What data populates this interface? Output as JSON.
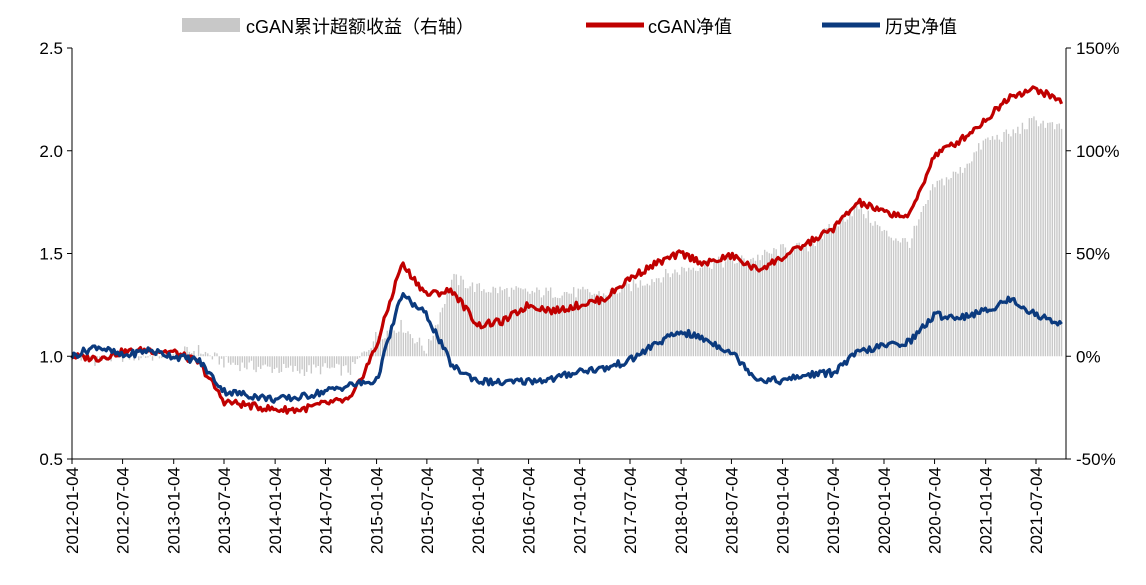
{
  "chart_data": {
    "type": "line",
    "title": "",
    "xlabel": "",
    "ylabel": "",
    "ylim": [
      0.5,
      2.5
    ],
    "y2lim": [
      -0.5,
      1.5
    ],
    "x_ticks": [
      "2012-01-04",
      "2012-07-04",
      "2013-01-04",
      "2013-07-04",
      "2014-01-04",
      "2014-07-04",
      "2015-01-04",
      "2015-07-04",
      "2016-01-04",
      "2016-07-04",
      "2017-01-04",
      "2017-07-04",
      "2018-01-04",
      "2018-07-04",
      "2019-01-04",
      "2019-07-04",
      "2020-01-04",
      "2020-07-04",
      "2021-01-04",
      "2021-07-04"
    ],
    "y_ticks": [
      "0.5",
      "1.0",
      "1.5",
      "2.0",
      "2.5"
    ],
    "y2_ticks": [
      "-50%",
      "0%",
      "50%",
      "100%",
      "150%"
    ],
    "legend_position": "top",
    "series": [
      {
        "name": "cGAN累计超额收益（右轴）",
        "type": "area",
        "axis": "right",
        "color": "#c8c8c8",
        "points": [
          [
            "2012-01-04",
            0.0
          ],
          [
            "2012-04-04",
            -0.02
          ],
          [
            "2012-07-04",
            0.0
          ],
          [
            "2012-10-04",
            0.0
          ],
          [
            "2013-01-04",
            0.01
          ],
          [
            "2013-04-04",
            0.03
          ],
          [
            "2013-07-04",
            -0.03
          ],
          [
            "2013-10-04",
            -0.05
          ],
          [
            "2014-01-04",
            -0.06
          ],
          [
            "2014-04-04",
            -0.07
          ],
          [
            "2014-07-04",
            -0.06
          ],
          [
            "2014-10-04",
            -0.07
          ],
          [
            "2015-01-04",
            0.1
          ],
          [
            "2015-04-04",
            0.15
          ],
          [
            "2015-07-04",
            0.03
          ],
          [
            "2015-10-04",
            0.38
          ],
          [
            "2016-01-04",
            0.33
          ],
          [
            "2016-04-04",
            0.32
          ],
          [
            "2016-07-04",
            0.31
          ],
          [
            "2016-10-04",
            0.31
          ],
          [
            "2017-01-04",
            0.31
          ],
          [
            "2017-04-04",
            0.3
          ],
          [
            "2017-07-04",
            0.34
          ],
          [
            "2017-10-04",
            0.38
          ],
          [
            "2018-01-04",
            0.42
          ],
          [
            "2018-04-04",
            0.45
          ],
          [
            "2018-07-04",
            0.46
          ],
          [
            "2018-10-04",
            0.48
          ],
          [
            "2019-01-04",
            0.52
          ],
          [
            "2019-04-04",
            0.53
          ],
          [
            "2019-07-04",
            0.63
          ],
          [
            "2019-10-04",
            0.73
          ],
          [
            "2020-01-04",
            0.6
          ],
          [
            "2020-04-04",
            0.55
          ],
          [
            "2020-07-04",
            0.83
          ],
          [
            "2020-10-04",
            0.9
          ],
          [
            "2021-01-04",
            1.05
          ],
          [
            "2021-04-04",
            1.08
          ],
          [
            "2021-07-04",
            1.15
          ],
          [
            "2021-10-04",
            1.1
          ]
        ]
      },
      {
        "name": "cGAN净值",
        "type": "line",
        "axis": "left",
        "color": "#c00000",
        "points": [
          [
            "2012-01-04",
            1.0
          ],
          [
            "2012-04-04",
            0.99
          ],
          [
            "2012-07-04",
            1.02
          ],
          [
            "2012-10-04",
            1.03
          ],
          [
            "2013-01-04",
            1.02
          ],
          [
            "2013-04-04",
            0.97
          ],
          [
            "2013-07-04",
            0.78
          ],
          [
            "2013-10-04",
            0.76
          ],
          [
            "2014-01-04",
            0.74
          ],
          [
            "2014-04-04",
            0.74
          ],
          [
            "2014-07-04",
            0.77
          ],
          [
            "2014-10-04",
            0.79
          ],
          [
            "2015-01-04",
            1.05
          ],
          [
            "2015-04-04",
            1.45
          ],
          [
            "2015-07-04",
            1.3
          ],
          [
            "2015-10-04",
            1.32
          ],
          [
            "2016-01-04",
            1.15
          ],
          [
            "2016-04-04",
            1.17
          ],
          [
            "2016-07-04",
            1.25
          ],
          [
            "2016-10-04",
            1.22
          ],
          [
            "2017-01-04",
            1.25
          ],
          [
            "2017-04-04",
            1.28
          ],
          [
            "2017-07-04",
            1.38
          ],
          [
            "2017-10-04",
            1.45
          ],
          [
            "2018-01-04",
            1.5
          ],
          [
            "2018-04-04",
            1.45
          ],
          [
            "2018-07-04",
            1.49
          ],
          [
            "2018-10-04",
            1.42
          ],
          [
            "2019-01-04",
            1.48
          ],
          [
            "2019-04-04",
            1.55
          ],
          [
            "2019-07-04",
            1.62
          ],
          [
            "2019-10-04",
            1.75
          ],
          [
            "2020-01-04",
            1.7
          ],
          [
            "2020-04-04",
            1.68
          ],
          [
            "2020-07-04",
            1.98
          ],
          [
            "2020-10-04",
            2.05
          ],
          [
            "2021-01-04",
            2.15
          ],
          [
            "2021-04-04",
            2.27
          ],
          [
            "2021-07-04",
            2.3
          ],
          [
            "2021-10-04",
            2.24
          ]
        ]
      },
      {
        "name": "历史净值",
        "type": "line",
        "axis": "left",
        "color": "#0b3a7e",
        "points": [
          [
            "2012-01-04",
            1.0
          ],
          [
            "2012-04-04",
            1.05
          ],
          [
            "2012-07-04",
            1.0
          ],
          [
            "2012-10-04",
            1.03
          ],
          [
            "2013-01-04",
            1.0
          ],
          [
            "2013-04-04",
            0.98
          ],
          [
            "2013-07-04",
            0.83
          ],
          [
            "2013-10-04",
            0.81
          ],
          [
            "2014-01-04",
            0.79
          ],
          [
            "2014-04-04",
            0.8
          ],
          [
            "2014-07-04",
            0.83
          ],
          [
            "2014-10-04",
            0.86
          ],
          [
            "2015-01-04",
            0.88
          ],
          [
            "2015-04-04",
            1.3
          ],
          [
            "2015-07-04",
            1.2
          ],
          [
            "2015-10-04",
            0.95
          ],
          [
            "2016-01-04",
            0.88
          ],
          [
            "2016-04-04",
            0.87
          ],
          [
            "2016-07-04",
            0.88
          ],
          [
            "2016-10-04",
            0.89
          ],
          [
            "2017-01-04",
            0.93
          ],
          [
            "2017-04-04",
            0.94
          ],
          [
            "2017-07-04",
            0.98
          ],
          [
            "2017-10-04",
            1.06
          ],
          [
            "2018-01-04",
            1.12
          ],
          [
            "2018-04-04",
            1.08
          ],
          [
            "2018-07-04",
            1.02
          ],
          [
            "2018-10-04",
            0.89
          ],
          [
            "2019-01-04",
            0.88
          ],
          [
            "2019-04-04",
            0.91
          ],
          [
            "2019-07-04",
            0.92
          ],
          [
            "2019-10-04",
            1.02
          ],
          [
            "2020-01-04",
            1.05
          ],
          [
            "2020-04-04",
            1.07
          ],
          [
            "2020-07-04",
            1.2
          ],
          [
            "2020-10-04",
            1.19
          ],
          [
            "2021-01-04",
            1.22
          ],
          [
            "2021-04-04",
            1.28
          ],
          [
            "2021-07-04",
            1.2
          ],
          [
            "2021-10-04",
            1.16
          ]
        ]
      }
    ]
  }
}
